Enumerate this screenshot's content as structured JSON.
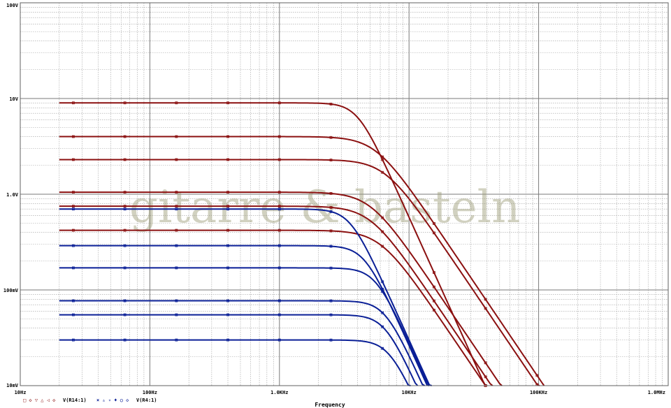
{
  "watermark": "gitarre & basteln",
  "colors": {
    "red": "#8b1010",
    "blue": "#0a1f96",
    "grid_major": "#7a7a7a",
    "grid_minor": "#a0a0a0",
    "watermark": "#9a9a73"
  },
  "chart_data": {
    "type": "line",
    "xscale": "log",
    "yscale": "log",
    "xlim": [
      10,
      1000000
    ],
    "ylim": [
      0.01,
      100
    ],
    "xlabel": "Frequency",
    "ylabel": "",
    "grid": true,
    "x_ticks": [
      {
        "value": 10,
        "label": "10Hz"
      },
      {
        "value": 100,
        "label": "100Hz"
      },
      {
        "value": 1000,
        "label": "1.0KHz"
      },
      {
        "value": 10000,
        "label": "10KHz"
      },
      {
        "value": 100000,
        "label": "100KHz"
      },
      {
        "value": 1000000,
        "label": "1.0MHz"
      }
    ],
    "y_ticks": [
      {
        "value": 100,
        "label": "100V"
      },
      {
        "value": 10,
        "label": "10V"
      },
      {
        "value": 1,
        "label": "1.0V"
      },
      {
        "value": 0.1,
        "label": "100mV"
      },
      {
        "value": 0.01,
        "label": "10mV"
      }
    ],
    "legend": [
      {
        "label": "V(R14:1)",
        "color": "#8b1010",
        "markers": "□◇▽△◁◇"
      },
      {
        "label": "V(R4:1)",
        "color": "#0a1f96",
        "markers": "×▵▿♦○◇"
      }
    ],
    "legend_placement": "bottom-left",
    "series": [
      {
        "group": "V(R14:1)",
        "color": "#8b1010",
        "x_start": 20,
        "flat": 9.0,
        "fc": 4000,
        "order": 3
      },
      {
        "group": "V(R14:1)",
        "color": "#8b1010",
        "x_start": 20,
        "flat": 4.0,
        "fc": 5500,
        "order": 2
      },
      {
        "group": "V(R14:1)",
        "color": "#8b1010",
        "x_start": 20,
        "flat": 2.3,
        "fc": 6500,
        "order": 2
      },
      {
        "group": "V(R14:1)",
        "color": "#8b1010",
        "x_start": 20,
        "flat": 1.05,
        "fc": 5000,
        "order": 2
      },
      {
        "group": "V(R14:1)",
        "color": "#8b1010",
        "x_start": 20,
        "flat": 0.75,
        "fc": 5000,
        "order": 2
      },
      {
        "group": "V(R14:1)",
        "color": "#8b1010",
        "x_start": 20,
        "flat": 0.42,
        "fc": 6000,
        "order": 2
      },
      {
        "group": "V(R4:1)",
        "color": "#0a1f96",
        "x_start": 20,
        "flat": 0.7,
        "fc": 3500,
        "order": 3
      },
      {
        "group": "V(R4:1)",
        "color": "#0a1f96",
        "x_start": 20,
        "flat": 0.29,
        "fc": 4500,
        "order": 3
      },
      {
        "group": "V(R4:1)",
        "color": "#0a1f96",
        "x_start": 20,
        "flat": 0.17,
        "fc": 5500,
        "order": 3
      },
      {
        "group": "V(R4:1)",
        "color": "#0a1f96",
        "x_start": 20,
        "flat": 0.077,
        "fc": 6500,
        "order": 3
      },
      {
        "group": "V(R4:1)",
        "color": "#0a1f96",
        "x_start": 20,
        "flat": 0.055,
        "fc": 6500,
        "order": 3
      },
      {
        "group": "V(R4:1)",
        "color": "#0a1f96",
        "x_start": 20,
        "flat": 0.03,
        "fc": 7000,
        "order": 3
      }
    ]
  }
}
